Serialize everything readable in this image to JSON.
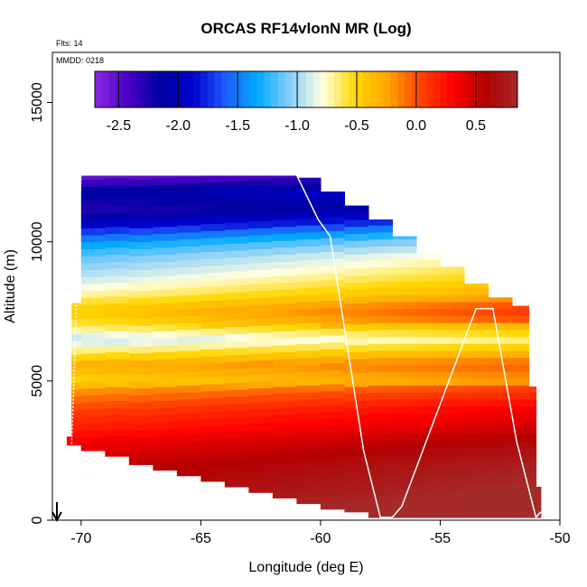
{
  "chart_data": {
    "type": "heatmap",
    "title": "ORCAS RF14vlonN MR (Log)",
    "annotations": {
      "flights": "Flts: 14",
      "date": "MMDD: 0218"
    },
    "xlabel": "Longitude (deg E)",
    "ylabel": "Altitude (m)",
    "xlim": [
      -71.2,
      -50
    ],
    "ylim": [
      0,
      16800
    ],
    "x_ticks": [
      -70,
      -65,
      -60,
      -55,
      -50
    ],
    "x_tick_labels": [
      "-70",
      "-65",
      "-60",
      "-55",
      "-50"
    ],
    "y_ticks": [
      0,
      5000,
      10000,
      15000
    ],
    "y_tick_labels": [
      "0",
      "5000",
      "10000",
      "15000"
    ],
    "colorbar": {
      "range": [
        -2.7,
        0.85
      ],
      "ticks": [
        -2.5,
        -2.0,
        -1.5,
        -1.0,
        -0.5,
        0.0,
        0.5
      ],
      "tick_labels": [
        "-2.5",
        "-2.0",
        "-1.5",
        "-1.0",
        "-0.5",
        "0.0",
        "0.5"
      ],
      "colors": [
        "#8a2be2",
        "#4b00c8",
        "#0000a0",
        "#0000cd",
        "#1e5aff",
        "#00aaff",
        "#87cefa",
        "#ffffe0",
        "#ffd700",
        "#ffa500",
        "#ff4500",
        "#ff0000",
        "#b40000",
        "#a52a2a"
      ]
    },
    "grid": {
      "lon_start": -70.5,
      "lon_step": 0.25,
      "alt_step": 250
    },
    "columns": [
      {
        "lon_from": -70.6,
        "lon_to": -70.4,
        "bottom": 2700,
        "top": 3000
      },
      {
        "lon_from": -70.4,
        "lon_to": -70.0,
        "bottom": 2700,
        "top": 7800
      },
      {
        "lon_from": -70.0,
        "lon_to": -69.0,
        "bottom": 2500,
        "top": 12400
      },
      {
        "lon_from": -69.0,
        "lon_to": -68.0,
        "bottom": 2300,
        "top": 12400
      },
      {
        "lon_from": -68.0,
        "lon_to": -67.0,
        "bottom": 2000,
        "top": 12400
      },
      {
        "lon_from": -67.0,
        "lon_to": -66.0,
        "bottom": 1800,
        "top": 12400
      },
      {
        "lon_from": -66.0,
        "lon_to": -65.0,
        "bottom": 1600,
        "top": 12400
      },
      {
        "lon_from": -65.0,
        "lon_to": -64.0,
        "bottom": 1400,
        "top": 12400
      },
      {
        "lon_from": -64.0,
        "lon_to": -63.0,
        "bottom": 1200,
        "top": 12400
      },
      {
        "lon_from": -63.0,
        "lon_to": -62.0,
        "bottom": 1000,
        "top": 12400
      },
      {
        "lon_from": -62.0,
        "lon_to": -61.0,
        "bottom": 800,
        "top": 12400
      },
      {
        "lon_from": -61.0,
        "lon_to": -60.0,
        "bottom": 600,
        "top": 12300
      },
      {
        "lon_from": -60.0,
        "lon_to": -59.0,
        "bottom": 400,
        "top": 11800
      },
      {
        "lon_from": -59.0,
        "lon_to": -58.0,
        "bottom": 300,
        "top": 11300
      },
      {
        "lon_from": -58.0,
        "lon_to": -57.0,
        "bottom": 100,
        "top": 10800
      },
      {
        "lon_from": -57.0,
        "lon_to": -56.0,
        "bottom": 100,
        "top": 10200
      },
      {
        "lon_from": -56.0,
        "lon_to": -55.0,
        "bottom": 100,
        "top": 9600
      },
      {
        "lon_from": -55.0,
        "lon_to": -54.0,
        "bottom": 100,
        "top": 9100
      },
      {
        "lon_from": -54.0,
        "lon_to": -53.0,
        "bottom": 100,
        "top": 8500
      },
      {
        "lon_from": -53.0,
        "lon_to": -52.0,
        "bottom": 100,
        "top": 8000
      },
      {
        "lon_from": -52.0,
        "lon_to": -51.3,
        "bottom": 100,
        "top": 7700
      },
      {
        "lon_from": -51.3,
        "lon_to": -51.0,
        "bottom": 100,
        "top": 4800
      },
      {
        "lon_from": -51.0,
        "lon_to": -50.8,
        "bottom": 100,
        "top": 1200
      }
    ],
    "profile": [
      {
        "alt": 0,
        "value": 0.75
      },
      {
        "alt": 1000,
        "value": 0.6
      },
      {
        "alt": 2000,
        "value": 0.5
      },
      {
        "alt": 2800,
        "value": 0.35
      },
      {
        "alt": 3300,
        "value": 0.2
      },
      {
        "alt": 4000,
        "value": 0.05
      },
      {
        "alt": 4700,
        "value": -0.2
      },
      {
        "alt": 5000,
        "value": -0.5
      },
      {
        "alt": 5600,
        "value": -0.3
      },
      {
        "alt": 6000,
        "value": -0.6
      },
      {
        "alt": 6500,
        "value": -0.95
      },
      {
        "alt": 7000,
        "value": -0.6
      },
      {
        "alt": 7500,
        "value": -0.45
      },
      {
        "alt": 7800,
        "value": -0.55
      },
      {
        "alt": 8200,
        "value": -0.75
      },
      {
        "alt": 8800,
        "value": -0.95
      },
      {
        "alt": 9500,
        "value": -1.15
      },
      {
        "alt": 10000,
        "value": -1.4
      },
      {
        "alt": 10600,
        "value": -1.9
      },
      {
        "alt": 11200,
        "value": -2.3
      },
      {
        "alt": 11800,
        "value": -2.1
      },
      {
        "alt": 12400,
        "value": -2.6
      }
    ],
    "east_warming": 0.3,
    "flight_track": {
      "lon": [
        -70.0,
        -61.0,
        -60.1,
        -59.6,
        -58.2,
        -57.5,
        -57.0,
        -56.6,
        -53.5,
        -52.8,
        -51.8,
        -51.0,
        -50.8
      ],
      "alt": [
        12400,
        12400,
        10800,
        10200,
        2500,
        100,
        100,
        500,
        7600,
        7600,
        2800,
        100,
        300
      ]
    },
    "west_profile": {
      "lon": [
        -70.0,
        -70.1,
        -70.2,
        -70.3,
        -70.4
      ],
      "alt": [
        12400,
        10000,
        7800,
        5000,
        2700
      ]
    }
  }
}
